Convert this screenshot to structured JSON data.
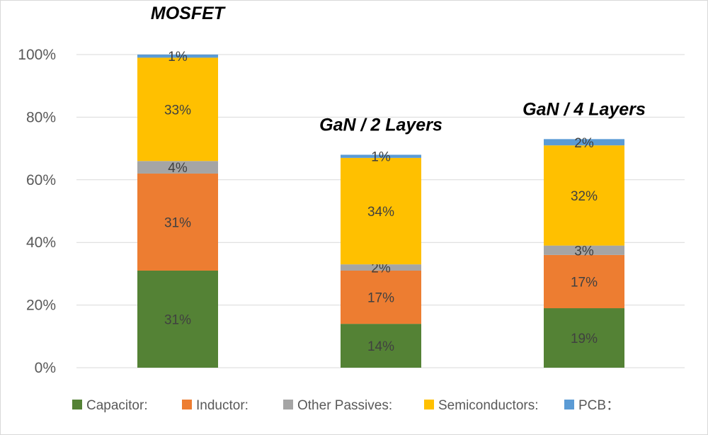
{
  "chart_data": {
    "type": "bar",
    "stacked": true,
    "categories": [
      "MOSFET",
      "GaN / 2 Layers",
      "GaN / 4 Layers"
    ],
    "series": [
      {
        "name": "Capacitor:",
        "color": "#548235",
        "values": [
          31,
          14,
          19
        ],
        "labels": [
          "31%",
          "14%",
          "19%"
        ]
      },
      {
        "name": "Inductor:",
        "color": "#ED7D31",
        "values": [
          31,
          17,
          17
        ],
        "labels": [
          "31%",
          "17%",
          "17%"
        ]
      },
      {
        "name": "Other Passives:",
        "color": "#A5A5A5",
        "values": [
          4,
          2,
          3
        ],
        "labels": [
          "4%",
          "2%",
          "3%"
        ]
      },
      {
        "name": "Semiconductors:",
        "color": "#FFC000",
        "values": [
          33,
          34,
          32
        ],
        "labels": [
          "33%",
          "34%",
          "32%"
        ]
      },
      {
        "name": "PCB：",
        "color": "#5B9BD5",
        "values": [
          1,
          1,
          2
        ],
        "labels": [
          "1%",
          "1%",
          "2%"
        ]
      }
    ],
    "yticks": [
      "0%",
      "20%",
      "40%",
      "60%",
      "80%",
      "100%"
    ],
    "ylim": [
      0,
      100
    ],
    "grid": true,
    "legend": "bottom",
    "title": "",
    "xlabel": "",
    "ylabel": ""
  }
}
